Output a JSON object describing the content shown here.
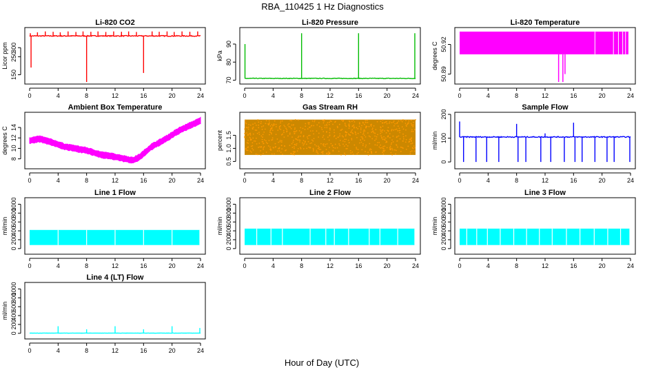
{
  "figure": {
    "title": "RBA_110425  1 Hz Diagnostics",
    "xlabel": "Hour of Day (UTC)"
  },
  "chart_data": [
    {
      "id": "co2",
      "type": "line",
      "title": "Li-820 CO2",
      "ylabel": "Licor ppm",
      "color": "#ff0000",
      "xlim": [
        0,
        24
      ],
      "ylim": [
        110,
        400
      ],
      "xticks": [
        0,
        4,
        8,
        12,
        16,
        20,
        24
      ],
      "yticks": [
        150,
        250,
        300
      ],
      "baseline": 365,
      "noise": 5,
      "dip": null,
      "trend": null,
      "spikes": [
        {
          "x": 0.1,
          "y": 380
        },
        {
          "x": 0.2,
          "y": 190
        },
        {
          "x": 1.1,
          "y": 385
        },
        {
          "x": 2.2,
          "y": 390
        },
        {
          "x": 3.3,
          "y": 388
        },
        {
          "x": 4.3,
          "y": 385
        },
        {
          "x": 5.4,
          "y": 390
        },
        {
          "x": 6.5,
          "y": 387
        },
        {
          "x": 7.5,
          "y": 390
        },
        {
          "x": 8.0,
          "y": 110
        },
        {
          "x": 8.6,
          "y": 388
        },
        {
          "x": 9.6,
          "y": 390
        },
        {
          "x": 10.7,
          "y": 387
        },
        {
          "x": 11.8,
          "y": 390
        },
        {
          "x": 12.9,
          "y": 388
        },
        {
          "x": 13.9,
          "y": 390
        },
        {
          "x": 15.0,
          "y": 387
        },
        {
          "x": 16.0,
          "y": 160
        },
        {
          "x": 17.2,
          "y": 390
        },
        {
          "x": 18.2,
          "y": 388
        },
        {
          "x": 19.3,
          "y": 390
        },
        {
          "x": 20.3,
          "y": 387
        },
        {
          "x": 21.4,
          "y": 390
        },
        {
          "x": 22.5,
          "y": 388
        },
        {
          "x": 23.6,
          "y": 390
        }
      ]
    },
    {
      "id": "pressure",
      "type": "line",
      "title": "Li-820 Pressure",
      "ylabel": "kPa",
      "color": "#00bb00",
      "xlim": [
        0,
        24
      ],
      "ylim": [
        69,
        98
      ],
      "xticks": [
        0,
        4,
        8,
        12,
        16,
        20,
        24
      ],
      "yticks": [
        70,
        80,
        90
      ],
      "baseline": 71,
      "noise": 0.3,
      "dip": null,
      "trend": null,
      "spikes": [
        {
          "x": 0.05,
          "y": 90
        },
        {
          "x": 8.0,
          "y": 96
        },
        {
          "x": 16.0,
          "y": 96
        },
        {
          "x": 23.9,
          "y": 96
        }
      ]
    },
    {
      "id": "temp",
      "type": "band",
      "title": "Li-820 Temperature",
      "ylabel": "degrees C",
      "color": "#ff00ff",
      "xlim": [
        0,
        24
      ],
      "ylim": [
        50.882,
        50.935
      ],
      "xticks": [
        0,
        4,
        8,
        12,
        16,
        20,
        24
      ],
      "yticks": [
        50.89,
        50.92
      ],
      "ytick_labels": [
        "50.89",
        "50.92"
      ],
      "band": [
        50.91,
        50.933
      ],
      "band_end": 23.7,
      "dips": [
        {
          "x": 13.9,
          "y": 50.882
        },
        {
          "x": 14.5,
          "y": 50.882
        },
        {
          "x": 14.8,
          "y": 50.89
        }
      ]
    },
    {
      "id": "ambient",
      "type": "curve",
      "title": "Ambient Box Temperature",
      "ylabel": "degrees C",
      "color": "#ff00ff",
      "xlim": [
        0,
        24
      ],
      "ylim": [
        6.5,
        16.5
      ],
      "xticks": [
        0,
        4,
        8,
        12,
        16,
        20,
        24
      ],
      "yticks": [
        8,
        10,
        12,
        14
      ],
      "noise": 0.9,
      "curve": [
        {
          "x": 0,
          "y": 11.5
        },
        {
          "x": 1.5,
          "y": 11.8
        },
        {
          "x": 3,
          "y": 11.2
        },
        {
          "x": 5,
          "y": 10.3
        },
        {
          "x": 8,
          "y": 9.6
        },
        {
          "x": 10,
          "y": 8.8
        },
        {
          "x": 12,
          "y": 8.4
        },
        {
          "x": 14.5,
          "y": 7.7
        },
        {
          "x": 15.5,
          "y": 8.4
        },
        {
          "x": 17,
          "y": 10.2
        },
        {
          "x": 19,
          "y": 11.7
        },
        {
          "x": 21,
          "y": 13.4
        },
        {
          "x": 24,
          "y": 15.3
        }
      ]
    },
    {
      "id": "rh",
      "type": "noise",
      "title": "Gas Stream RH",
      "ylabel": "percent",
      "color": "#ff9900",
      "fill_color": "#cc8800",
      "xlim": [
        0,
        24
      ],
      "ylim": [
        0.3,
        2.3
      ],
      "xticks": [
        0,
        4,
        8,
        12,
        16,
        20,
        24
      ],
      "yticks": [
        0.5,
        1.0,
        1.5
      ],
      "ytick_labels": [
        "0.5",
        "1.0",
        "1.5"
      ],
      "band": [
        0.75,
        2.1
      ]
    },
    {
      "id": "sample",
      "type": "line",
      "title": "Sample Flow",
      "ylabel": "ml/min",
      "color": "#0000ff",
      "xlim": [
        0,
        24
      ],
      "ylim": [
        -20,
        200
      ],
      "xticks": [
        0,
        4,
        8,
        12,
        16,
        20,
        24
      ],
      "yticks": [
        0,
        100,
        200
      ],
      "baseline": 105,
      "noise": 4,
      "dip": null,
      "trend": null,
      "spikes": [
        {
          "x": 0.0,
          "y": 170
        },
        {
          "x": 0.55,
          "y": 0
        },
        {
          "x": 2.3,
          "y": 0
        },
        {
          "x": 3.8,
          "y": 0
        },
        {
          "x": 5.5,
          "y": 0
        },
        {
          "x": 8.0,
          "y": 160
        },
        {
          "x": 8.2,
          "y": 0
        },
        {
          "x": 9.3,
          "y": 0
        },
        {
          "x": 11.4,
          "y": 0
        },
        {
          "x": 12.0,
          "y": 120
        },
        {
          "x": 12.8,
          "y": 0
        },
        {
          "x": 14.7,
          "y": 0
        },
        {
          "x": 16.0,
          "y": 165
        },
        {
          "x": 16.2,
          "y": 0
        },
        {
          "x": 17.2,
          "y": 0
        },
        {
          "x": 19.0,
          "y": 0
        },
        {
          "x": 20.7,
          "y": 0
        },
        {
          "x": 21.7,
          "y": 0
        },
        {
          "x": 23.9,
          "y": 0
        }
      ]
    },
    {
      "id": "line1",
      "type": "flowband",
      "title": "Line 1 Flow",
      "ylabel": "ml/min",
      "color": "#00ffff",
      "xlim": [
        0,
        24
      ],
      "ylim": [
        -80,
        1100
      ],
      "xticks": [
        0,
        4,
        8,
        12,
        16,
        20,
        24
      ],
      "yticks": [
        0,
        200,
        400,
        600,
        800,
        1000
      ],
      "band": [
        80,
        420
      ],
      "gaps": [
        4.0,
        8.0,
        12.0,
        16.0,
        20.0,
        23.9
      ]
    },
    {
      "id": "line2",
      "type": "flowband",
      "title": "Line 2 Flow",
      "ylabel": "ml/min",
      "color": "#00ffff",
      "xlim": [
        0,
        24
      ],
      "ylim": [
        -80,
        1100
      ],
      "xticks": [
        0,
        4,
        8,
        12,
        16,
        20,
        24
      ],
      "yticks": [
        0,
        200,
        400,
        600,
        800,
        1000
      ],
      "band": [
        80,
        450
      ],
      "gaps": [
        1.7,
        3.7,
        5.3,
        9.2,
        11.4,
        12.6,
        14.6,
        17.5,
        19.0,
        21.5,
        23.9
      ]
    },
    {
      "id": "line3",
      "type": "flowband",
      "title": "Line 3 Flow",
      "ylabel": "ml/min",
      "color": "#00ffff",
      "xlim": [
        0,
        24
      ],
      "ylim": [
        -80,
        1100
      ],
      "xticks": [
        0,
        4,
        8,
        12,
        16,
        20,
        24
      ],
      "yticks": [
        0,
        200,
        400,
        600,
        800,
        1000
      ],
      "band": [
        80,
        450
      ],
      "gaps": [
        1.0,
        2.4,
        3.9,
        5.7,
        7.6,
        9.4,
        11.2,
        13.0,
        15.0,
        16.9,
        18.9,
        20.8,
        22.6,
        23.9
      ]
    },
    {
      "id": "line4",
      "type": "line",
      "title": "Line 4 (LT) Flow",
      "ylabel": "ml/min",
      "color": "#00ffff",
      "xlim": [
        0,
        24
      ],
      "ylim": [
        -80,
        1100
      ],
      "xticks": [
        0,
        4,
        8,
        12,
        16,
        20,
        24
      ],
      "yticks": [
        0,
        200,
        400,
        600,
        800,
        1000
      ],
      "baseline": 5,
      "noise": 4,
      "dip": null,
      "trend": null,
      "spikes": [
        {
          "x": 4.0,
          "y": 160
        },
        {
          "x": 8.0,
          "y": 90
        },
        {
          "x": 12.0,
          "y": 160
        },
        {
          "x": 16.0,
          "y": 90
        },
        {
          "x": 20.0,
          "y": 160
        },
        {
          "x": 23.9,
          "y": 120
        }
      ]
    }
  ]
}
